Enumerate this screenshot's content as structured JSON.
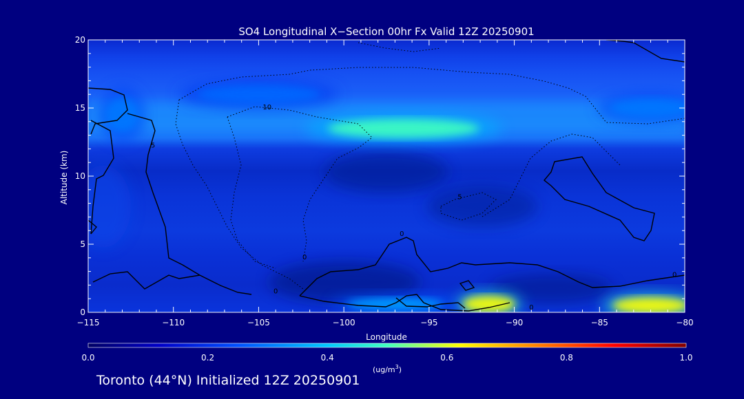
{
  "chart_data": {
    "type": "heatmap",
    "title": "SO4 Longitudinal X−Section 00hr  Fx Valid 12Z 20250901",
    "xlabel": "Longitude",
    "ylabel": "Altitude (km)",
    "xlim": [
      -115,
      -80
    ],
    "ylim": [
      0,
      20
    ],
    "x_ticks": [
      -115,
      -110,
      -105,
      -100,
      -95,
      -90,
      -85,
      -80
    ],
    "x_tick_labels": [
      "−115",
      "−110",
      "−105",
      "−100",
      "−95",
      "−90",
      "−85",
      "−80"
    ],
    "y_ticks": [
      0,
      5,
      10,
      15,
      20
    ],
    "y_tick_labels": [
      "0",
      "5",
      "10",
      "15",
      "20"
    ],
    "colorbar": {
      "min": 0.0,
      "max": 1.0,
      "ticks": [
        0.0,
        0.2,
        0.4,
        0.6,
        0.8,
        1.0
      ],
      "tick_labels": [
        "0.0",
        "0.2",
        "0.4",
        "0.6",
        "0.8",
        "1.0"
      ],
      "unit_text": "(ug/m",
      "unit_sup": "3",
      "unit_close": ")"
    },
    "features": [
      {
        "lon": -96.5,
        "alt": 13.5,
        "value": 0.5
      },
      {
        "lon": -91.5,
        "alt": 0.6,
        "value": 0.62
      },
      {
        "lon": -82.0,
        "alt": 0.5,
        "value": 0.62
      },
      {
        "lon": -97.0,
        "alt": 0.6,
        "value": 0.35
      },
      {
        "lon": -82.0,
        "alt": 15.0,
        "value": 0.3
      },
      {
        "lon": -105.0,
        "alt": 16.0,
        "value": 0.28
      },
      {
        "lon": -113.0,
        "alt": 14.5,
        "value": 0.3
      }
    ],
    "contour_labels": [
      {
        "text": "10",
        "lon": -104.5,
        "alt": 14.9
      },
      {
        "text": "5",
        "lon": -111.2,
        "alt": 12.1
      },
      {
        "text": "5",
        "lon": -93.2,
        "alt": 8.3
      },
      {
        "text": "0",
        "lon": -96.6,
        "alt": 5.6
      },
      {
        "text": "0",
        "lon": -102.3,
        "alt": 3.9
      },
      {
        "text": "0",
        "lon": -104.0,
        "alt": 1.4
      },
      {
        "text": "0",
        "lon": -89.0,
        "alt": 0.2
      },
      {
        "text": "0",
        "lon": -80.6,
        "alt": 2.6
      }
    ]
  },
  "footer": {
    "text": "Toronto (44°N) Initialized 12Z 20250901"
  },
  "colors": {
    "background": "#000080",
    "cmap": [
      "#000064",
      "#0000c8",
      "#0050ff",
      "#00c8ff",
      "#ffff00",
      "#ff8000",
      "#ff0000",
      "#800000"
    ]
  }
}
